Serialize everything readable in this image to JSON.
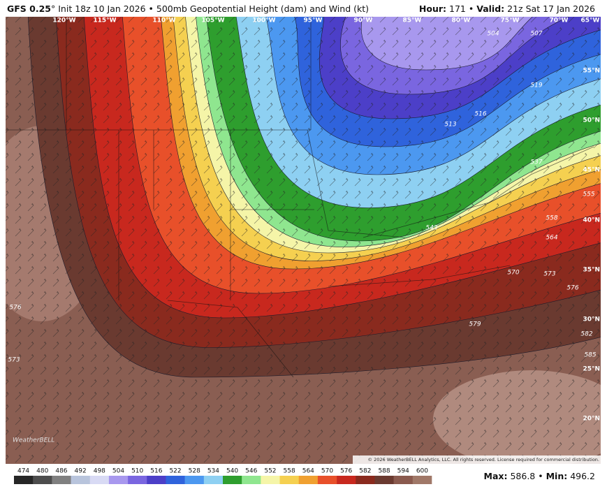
{
  "header": {
    "model": "GFS 0.25",
    "degree": "°",
    "init": "Init 18z 10 Jan 2026 • 500mb Geopotential Height (dam) and Wind (kt)",
    "hour_label": "Hour:",
    "hour": "171 •",
    "valid_label": "Valid:",
    "valid": "21z Sat 17 Jan 2026"
  },
  "longitudes": [
    "120°W",
    "115°W",
    "110°W",
    "105°W",
    "100°W",
    "95°W",
    "90°W",
    "85°W",
    "80°W",
    "75°W",
    "70°W",
    "65°W"
  ],
  "latitudes": [
    "55°N",
    "50°N",
    "45°N",
    "40°N",
    "35°N",
    "30°N",
    "25°N",
    "20°N"
  ],
  "contour_labels": [
    "504",
    "507",
    "513",
    "516",
    "519",
    "537",
    "543",
    "555",
    "558",
    "564",
    "570",
    "573",
    "576",
    "579",
    "582",
    "585",
    "573",
    "576"
  ],
  "copyright": "© 2026 WeatherBELL Analytics, LLC. All rights reserved. License required for commercial distribution.",
  "watermark": "WeatherBELL",
  "colorbar": {
    "levels": [
      474,
      480,
      486,
      492,
      498,
      504,
      510,
      516,
      522,
      528,
      534,
      540,
      546,
      552,
      558,
      564,
      570,
      576,
      582,
      588,
      594,
      600
    ],
    "colors": [
      "#262626",
      "#4d4d4d",
      "#808080",
      "#b8c4dc",
      "#d8daf4",
      "#a898ee",
      "#7a66e0",
      "#4c3fc8",
      "#2f63dc",
      "#4c98f0",
      "#8ed0f2",
      "#2e9e2e",
      "#8fe68f",
      "#f5f5a8",
      "#f5d050",
      "#f0a030",
      "#e8502a",
      "#c8281e",
      "#8a2a1e",
      "#6a3a30",
      "#8a5a4e",
      "#a07868"
    ]
  },
  "stats": {
    "max_label": "Max:",
    "max": "586.8 •",
    "min_label": "Min:",
    "min": "496.2"
  }
}
